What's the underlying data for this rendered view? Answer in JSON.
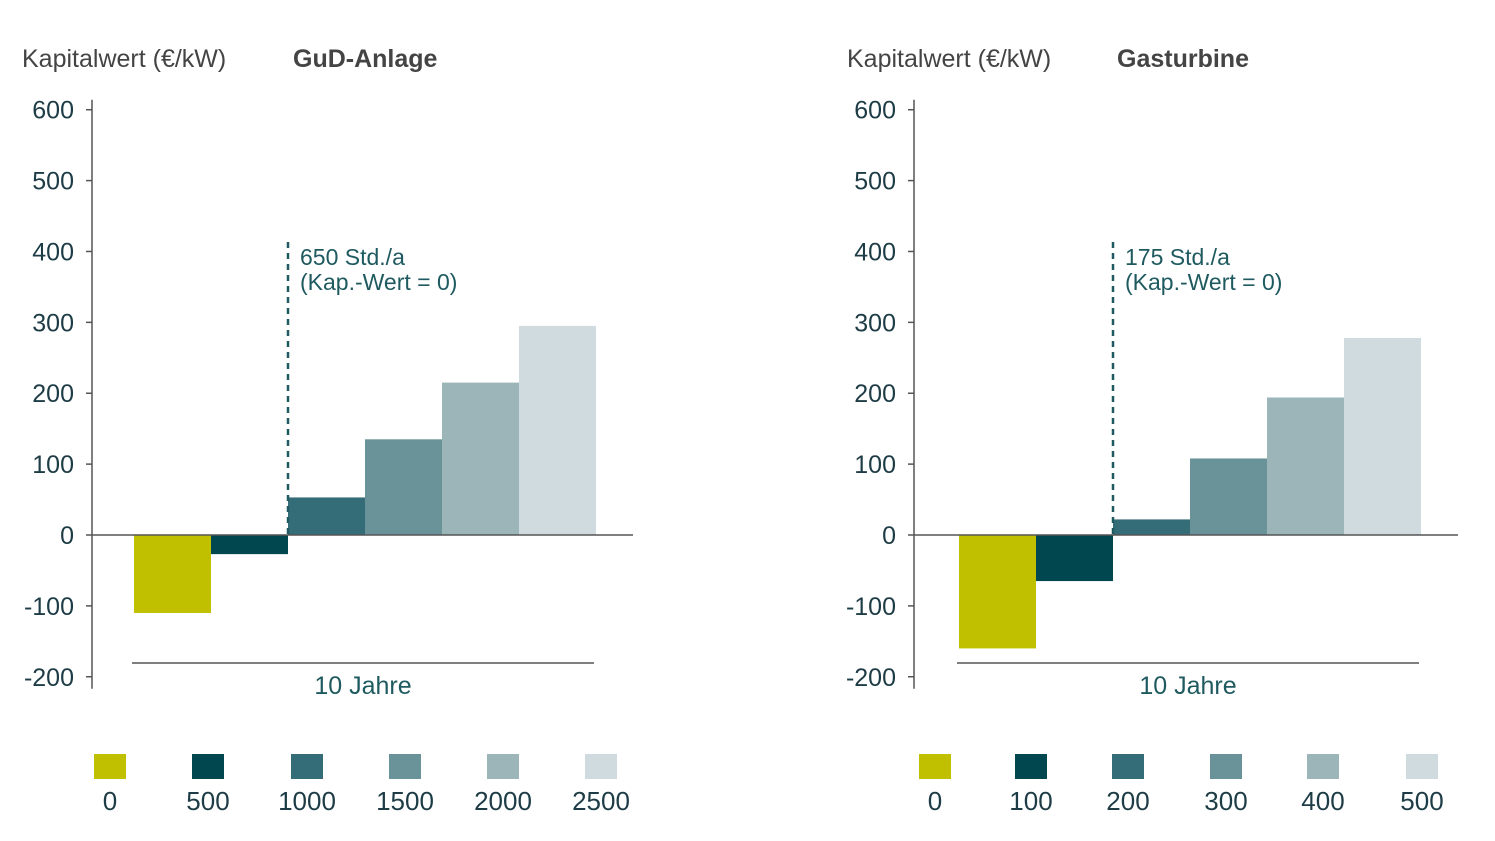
{
  "colors": {
    "c0": "#c0c000",
    "c1": "#00474f",
    "c2": "#346d77",
    "c3": "#6a9399",
    "c4": "#9cb5b9",
    "c5": "#cfdbde",
    "text_axis": "#1e3c46",
    "text_title": "#444444",
    "annotation": "#1e5a5f",
    "axis_line": "#555555"
  },
  "chart_data": [
    {
      "type": "bar",
      "ylabel_prefix": "Kapitalwert (€/kW)",
      "title": "GuD-Anlage",
      "ylim": [
        -200,
        600
      ],
      "yticks": [
        600,
        500,
        400,
        300,
        200,
        100,
        0,
        -100,
        -200
      ],
      "categories": [
        "0",
        "500",
        "1000",
        "1500",
        "2000",
        "2500"
      ],
      "values": [
        -110,
        -27,
        53,
        135,
        215,
        295
      ],
      "annotation_line1": "650 Std./a",
      "annotation_line2": "(Kap.-Wert = 0)",
      "bracket_label": "10 Jahre"
    },
    {
      "type": "bar",
      "ylabel_prefix": "Kapitalwert (€/kW)",
      "title": "Gasturbine",
      "ylim": [
        -200,
        600
      ],
      "yticks": [
        600,
        500,
        400,
        300,
        200,
        100,
        0,
        -100,
        -200
      ],
      "categories": [
        "0",
        "100",
        "200",
        "300",
        "400",
        "500"
      ],
      "values": [
        -160,
        -65,
        22,
        108,
        194,
        278
      ],
      "annotation_line1": "175 Std./a",
      "annotation_line2": "(Kap.-Wert = 0)",
      "bracket_label": "10 Jahre"
    }
  ]
}
